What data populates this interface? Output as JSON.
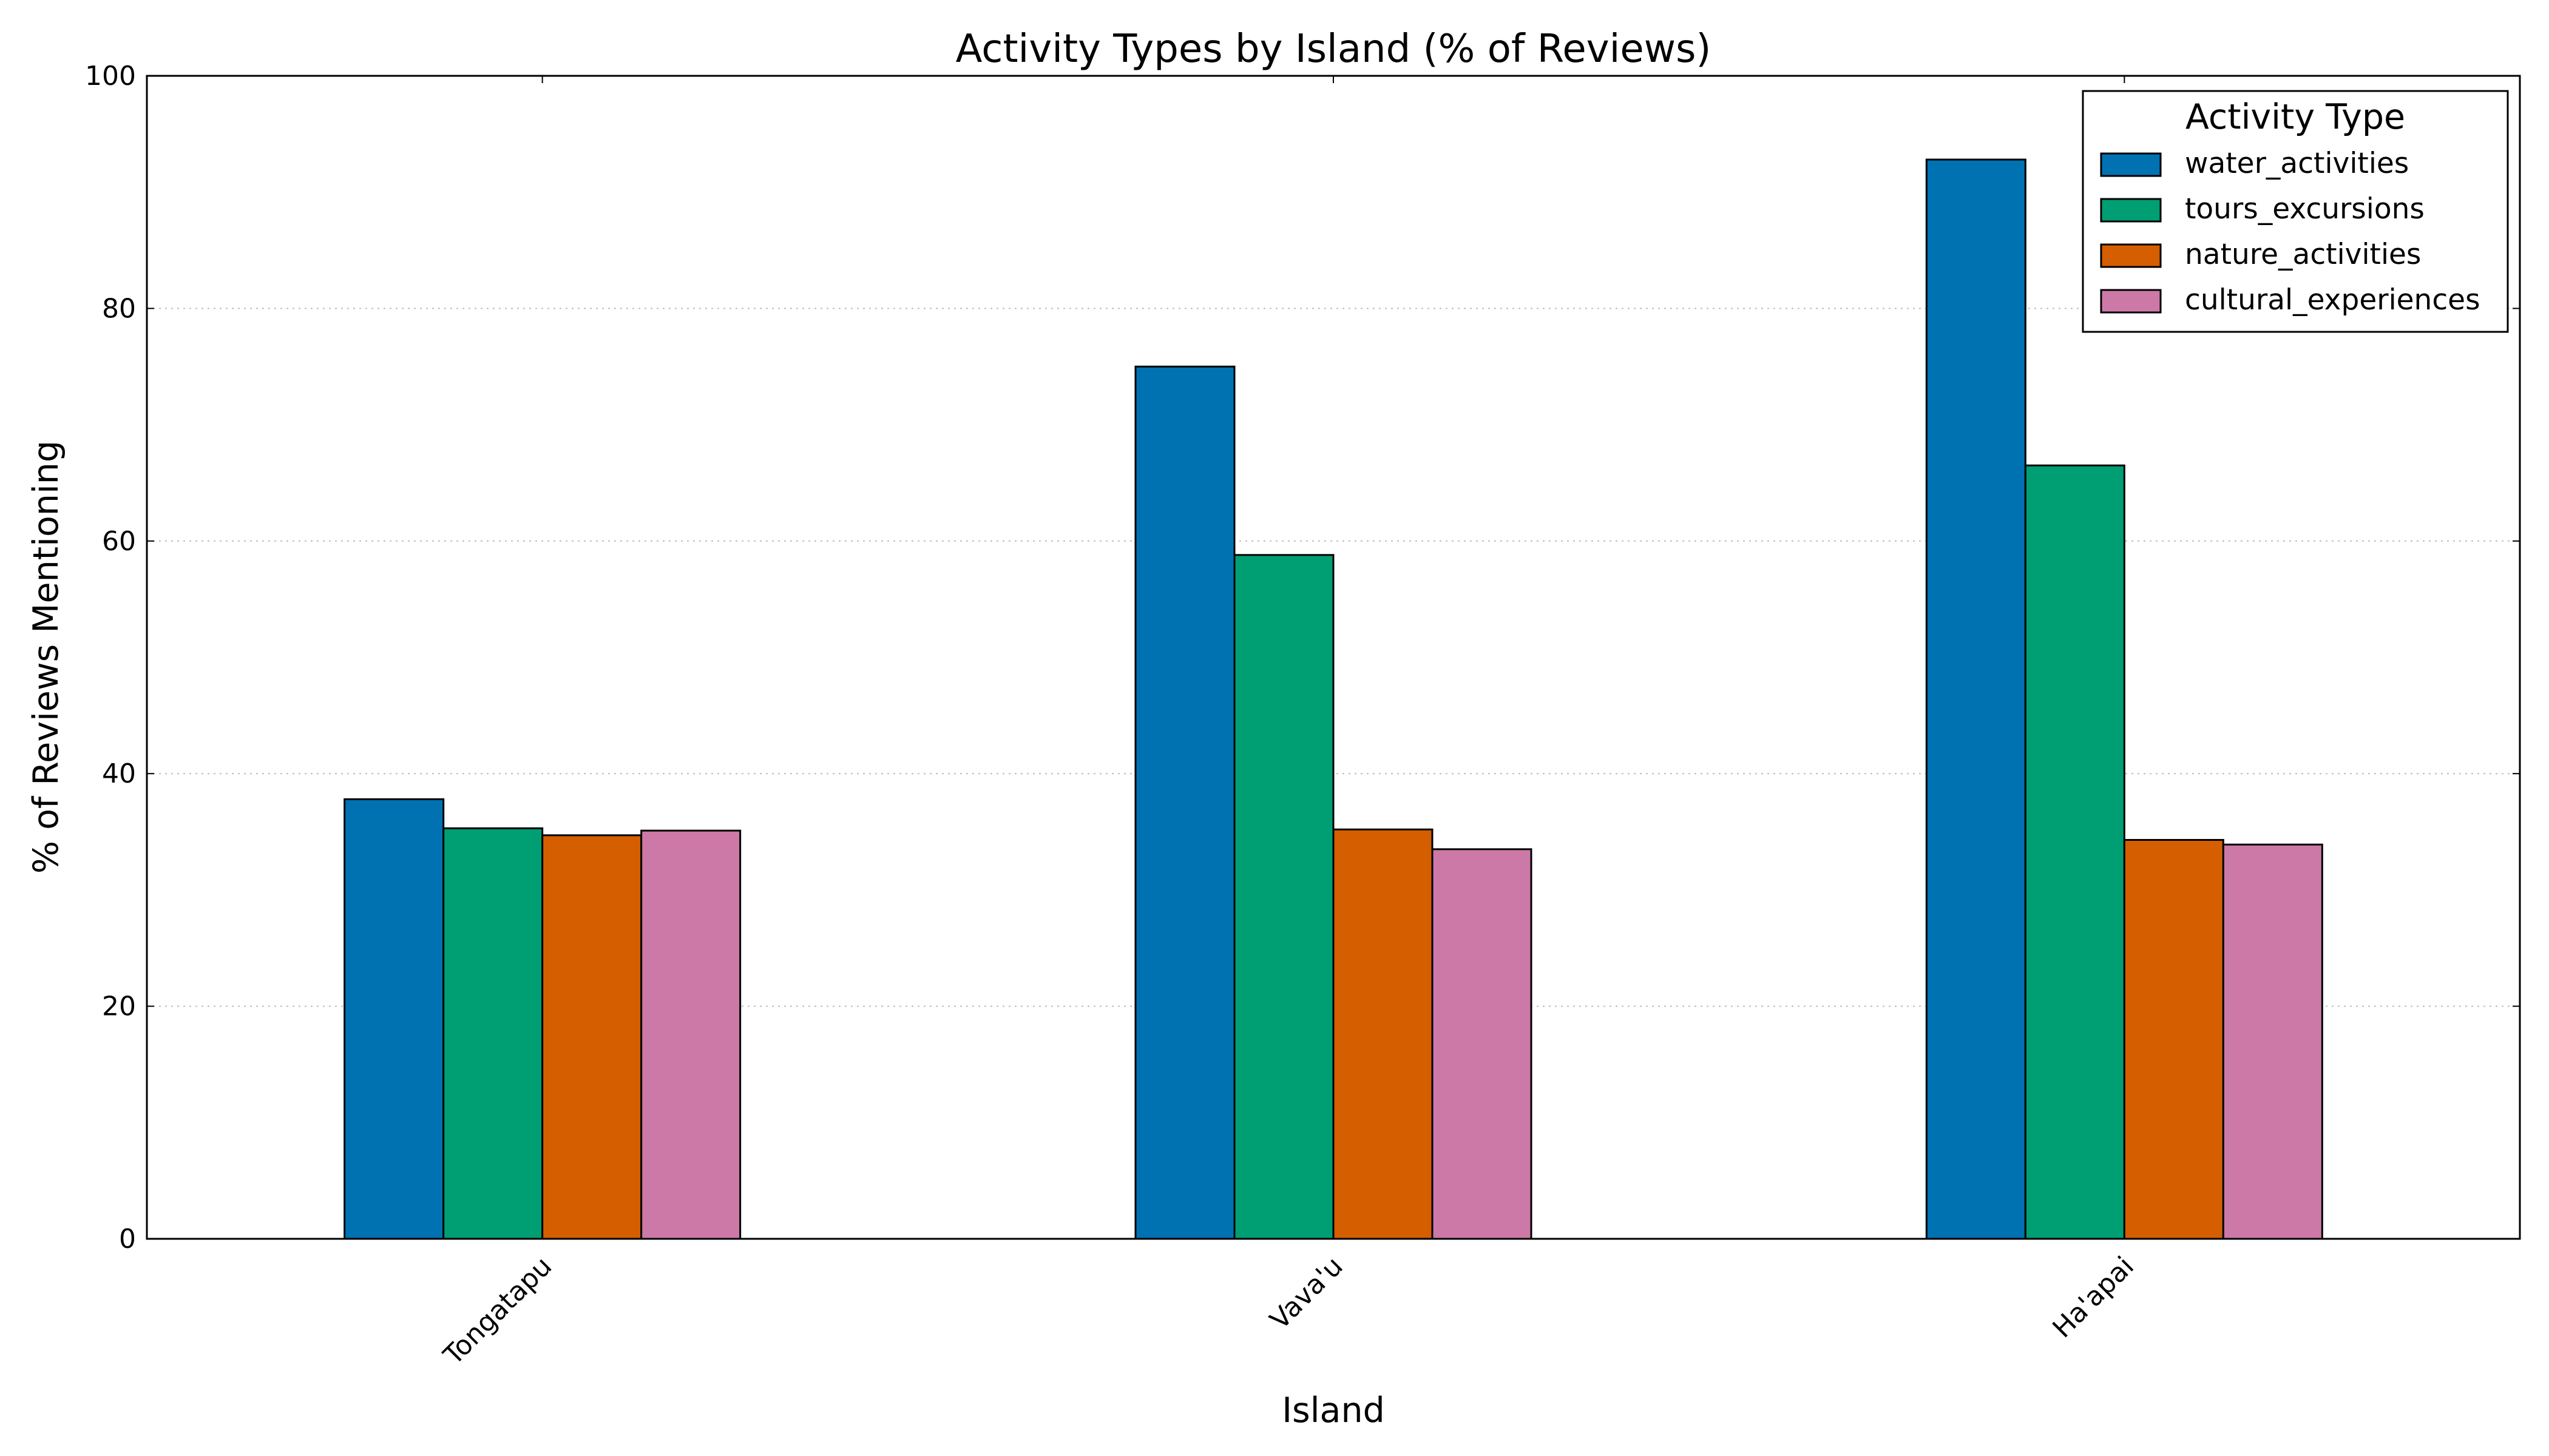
{
  "chart_data": {
    "type": "bar",
    "title": "Activity Types by Island (% of Reviews)",
    "xlabel": "Island",
    "ylabel": "% of Reviews Mentioning",
    "categories": [
      "Tongatapu",
      "Vava'u",
      "Ha'apai"
    ],
    "ylim": [
      0,
      100
    ],
    "yticks": [
      0,
      20,
      40,
      60,
      80,
      100
    ],
    "grid": "y-dotted",
    "legend": {
      "title": "Activity Type",
      "placement": "top-right"
    },
    "series": [
      {
        "name": "water_activities",
        "color": "#0072B2",
        "values": [
          37.8,
          75.0,
          92.8
        ]
      },
      {
        "name": "tours_excursions",
        "color": "#009E73",
        "values": [
          35.3,
          58.8,
          66.5
        ]
      },
      {
        "name": "nature_activities",
        "color": "#D55E00",
        "values": [
          34.7,
          35.2,
          34.3
        ]
      },
      {
        "name": "cultural_experiences",
        "color": "#CC79A7",
        "values": [
          35.1,
          33.5,
          33.9
        ]
      }
    ]
  }
}
